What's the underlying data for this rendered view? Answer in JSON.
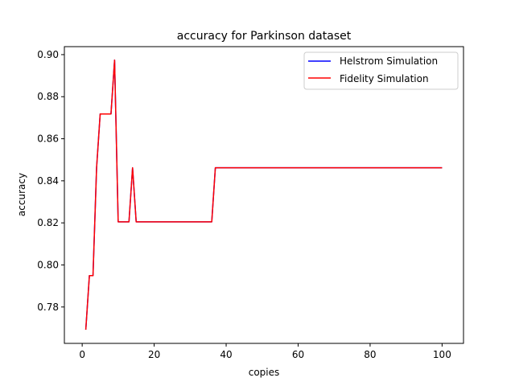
{
  "chart_data": {
    "type": "line",
    "title": "accuracy for Parkinson dataset",
    "xlabel": "copies",
    "ylabel": "accuracy",
    "xlim": [
      -4.95,
      105.95
    ],
    "ylim": [
      0.7627,
      0.9038
    ],
    "xticks": [
      0,
      20,
      40,
      60,
      80,
      100
    ],
    "xtick_labels": [
      "0",
      "20",
      "40",
      "60",
      "80",
      "100"
    ],
    "yticks": [
      0.78,
      0.8,
      0.82,
      0.84,
      0.86,
      0.88,
      0.9
    ],
    "ytick_labels": [
      "0.78",
      "0.80",
      "0.82",
      "0.84",
      "0.86",
      "0.88",
      "0.90"
    ],
    "grid": false,
    "legend_position": "top-right",
    "series": [
      {
        "name": "Helstrom Simulation",
        "color": "#0000ff",
        "x": [
          1,
          2,
          3,
          4,
          5,
          6,
          7,
          8,
          9,
          10,
          11,
          12,
          13,
          14,
          15,
          16,
          36,
          37,
          100
        ],
        "y": [
          0.7692,
          0.7949,
          0.7949,
          0.8462,
          0.8718,
          0.8718,
          0.8718,
          0.8718,
          0.8974,
          0.8205,
          0.8205,
          0.8205,
          0.8205,
          0.8462,
          0.8205,
          0.8205,
          0.8205,
          0.8462,
          0.8462
        ]
      },
      {
        "name": "Fidelity Simulation",
        "color": "#ff0000",
        "x": [
          1,
          2,
          3,
          4,
          5,
          6,
          7,
          8,
          9,
          10,
          11,
          12,
          13,
          14,
          15,
          16,
          36,
          37,
          100
        ],
        "y": [
          0.7692,
          0.7949,
          0.7949,
          0.8462,
          0.8718,
          0.8718,
          0.8718,
          0.8718,
          0.8974,
          0.8205,
          0.8205,
          0.8205,
          0.8205,
          0.8462,
          0.8205,
          0.8205,
          0.8205,
          0.8462,
          0.8462
        ]
      }
    ]
  }
}
